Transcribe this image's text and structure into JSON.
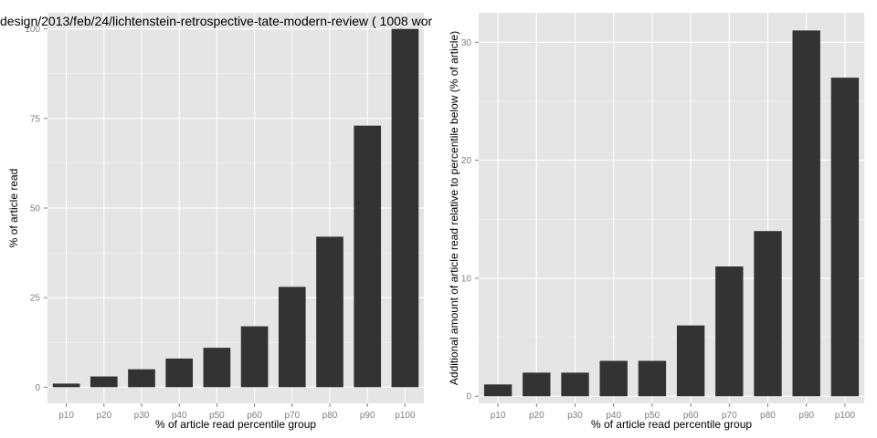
{
  "chart_data": [
    {
      "type": "bar",
      "title": "design/2013/feb/24/lichtenstein-retrospective-tate-modern-review ( 1008 wor",
      "xlabel": "% of article read percentile group",
      "ylabel": "% of article read",
      "categories": [
        "p10",
        "p20",
        "p30",
        "p40",
        "p50",
        "p60",
        "p70",
        "p80",
        "p90",
        "p100"
      ],
      "values": [
        1,
        3,
        5,
        8,
        11,
        17,
        28,
        42,
        73,
        100
      ],
      "ylim": [
        -4.5,
        104.5
      ],
      "yticks": [
        0,
        25,
        50,
        75,
        100
      ],
      "ytick_labels": [
        "0",
        "25",
        "50",
        "75",
        "100"
      ],
      "grid": true,
      "bar_color": "#333333",
      "panel_color": "#e5e5e5"
    },
    {
      "type": "bar",
      "title": "",
      "xlabel": "% of article read percentile group",
      "ylabel": "Additional amount of article read relative to percentile below (% of article)",
      "categories": [
        "p10",
        "p20",
        "p30",
        "p40",
        "p50",
        "p60",
        "p70",
        "p80",
        "p90",
        "p100"
      ],
      "values": [
        1,
        2,
        2,
        3,
        3,
        6,
        11,
        14,
        31,
        27
      ],
      "ylim": [
        -0.6,
        32.5
      ],
      "yticks": [
        0,
        10,
        20,
        30
      ],
      "ytick_labels": [
        "0",
        "10",
        "20",
        "30"
      ],
      "grid": true,
      "bar_color": "#333333",
      "panel_color": "#e5e5e5"
    }
  ]
}
